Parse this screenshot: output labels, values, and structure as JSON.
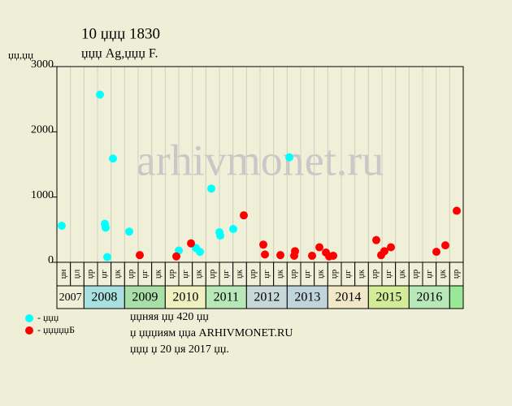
{
  "chart_data": {
    "type": "scatter",
    "title": "10 џџџ 1830",
    "subtitle": "џџџ Ag,џџџ F.",
    "y_label": "џџ,џџ",
    "watermark": "arhivmonet.ru",
    "ylim": [
      0,
      3000
    ],
    "yticks": [
      0,
      1000,
      2000,
      3000
    ],
    "xlim": [
      0,
      30
    ],
    "grid": true,
    "periods": [
      "џн",
      "џл",
      "џр",
      "џг",
      "џк",
      "џр",
      "џг",
      "џк",
      "џр",
      "џг",
      "џк",
      "џр",
      "џг",
      "џк",
      "џр",
      "џг",
      "џк",
      "џр",
      "џг",
      "џк",
      "џр",
      "џг",
      "џк",
      "џр",
      "џг",
      "џк",
      "џр",
      "џг",
      "џк",
      "џр"
    ],
    "years": [
      "2007",
      "2008",
      "2009",
      "2010",
      "2011",
      "2012",
      "2013",
      "2014",
      "2015",
      "2016"
    ],
    "year_colors": [
      "#f0f0d8",
      "#a8e0e0",
      "#a8e0a8",
      "#f0f0c0",
      "#b8e8b8",
      "#c8d8d8",
      "#c0d4dc",
      "#f0e8c8",
      "#d4ec98",
      "#b8e8b8",
      "#98e898"
    ],
    "series": [
      {
        "name": "- џџџ",
        "color": "#00ffff",
        "x": [
          0.36,
          3.18,
          3.54,
          3.6,
          3.72,
          4.14,
          5.34,
          9.0,
          10.26,
          10.56,
          11.4,
          12.0,
          12.06,
          13.02,
          17.16
        ],
        "values": [
          560,
          2570,
          590,
          530,
          80,
          1590,
          470,
          180,
          220,
          160,
          1130,
          460,
          410,
          510,
          1610
        ]
      },
      {
        "name": "- џџџџџБ",
        "color": "#ff0000",
        "x": [
          6.12,
          8.82,
          9.9,
          13.8,
          15.24,
          15.36,
          16.5,
          17.52,
          17.58,
          18.84,
          19.38,
          19.86,
          20.1,
          20.4,
          23.58,
          23.94,
          24.18,
          24.66,
          28.02,
          28.68,
          29.52
        ],
        "values": [
          110,
          90,
          290,
          720,
          270,
          120,
          110,
          100,
          170,
          100,
          230,
          150,
          90,
          100,
          340,
          110,
          170,
          230,
          160,
          260,
          790
        ]
      }
    ],
    "notes": [
      "џџняя џџ 420 џџ",
      "џ џџџиям џџа ARHIVMONET.RU",
      "џџџ џ 20 џя 2017 џџ."
    ]
  }
}
